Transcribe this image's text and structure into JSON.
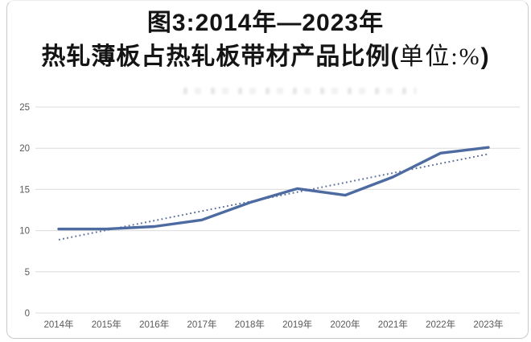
{
  "figure": {
    "title_line1": "图3:2014年—2023年",
    "title_line2_main": "热轧薄板占热轧板带材产品比例(",
    "title_line2_unit": "单位:%",
    "title_line2_close": ")"
  },
  "chart_data": {
    "type": "line",
    "title": "图3:2014年—2023年热轧薄板占热轧板带材产品比例(单位:%)",
    "categories": [
      "2014年",
      "2015年",
      "2016年",
      "2017年",
      "2018年",
      "2019年",
      "2020年",
      "2021年",
      "2022年",
      "2023年"
    ],
    "series": [
      {
        "name": "hot-rolled-thin-plate-share",
        "style": "solid",
        "color": "#4d6ba1",
        "stroke_width": 3.4,
        "values": [
          10.2,
          10.2,
          10.5,
          11.3,
          13.4,
          15.1,
          14.3,
          16.5,
          19.4,
          20.1
        ]
      },
      {
        "name": "linear-trend",
        "style": "dotted",
        "color": "#5a6f9b",
        "stroke_width": 2,
        "values": [
          8.9,
          10.06,
          11.21,
          12.37,
          13.52,
          14.68,
          15.83,
          16.99,
          18.14,
          19.3
        ]
      }
    ],
    "xlabel": "",
    "ylabel": "",
    "ylim": [
      0,
      25
    ],
    "yticks": [
      0,
      5,
      10,
      15,
      20,
      25
    ],
    "grid": true,
    "legend": "none",
    "tick_color": "#595959",
    "grid_color": "#dcdcdc"
  }
}
